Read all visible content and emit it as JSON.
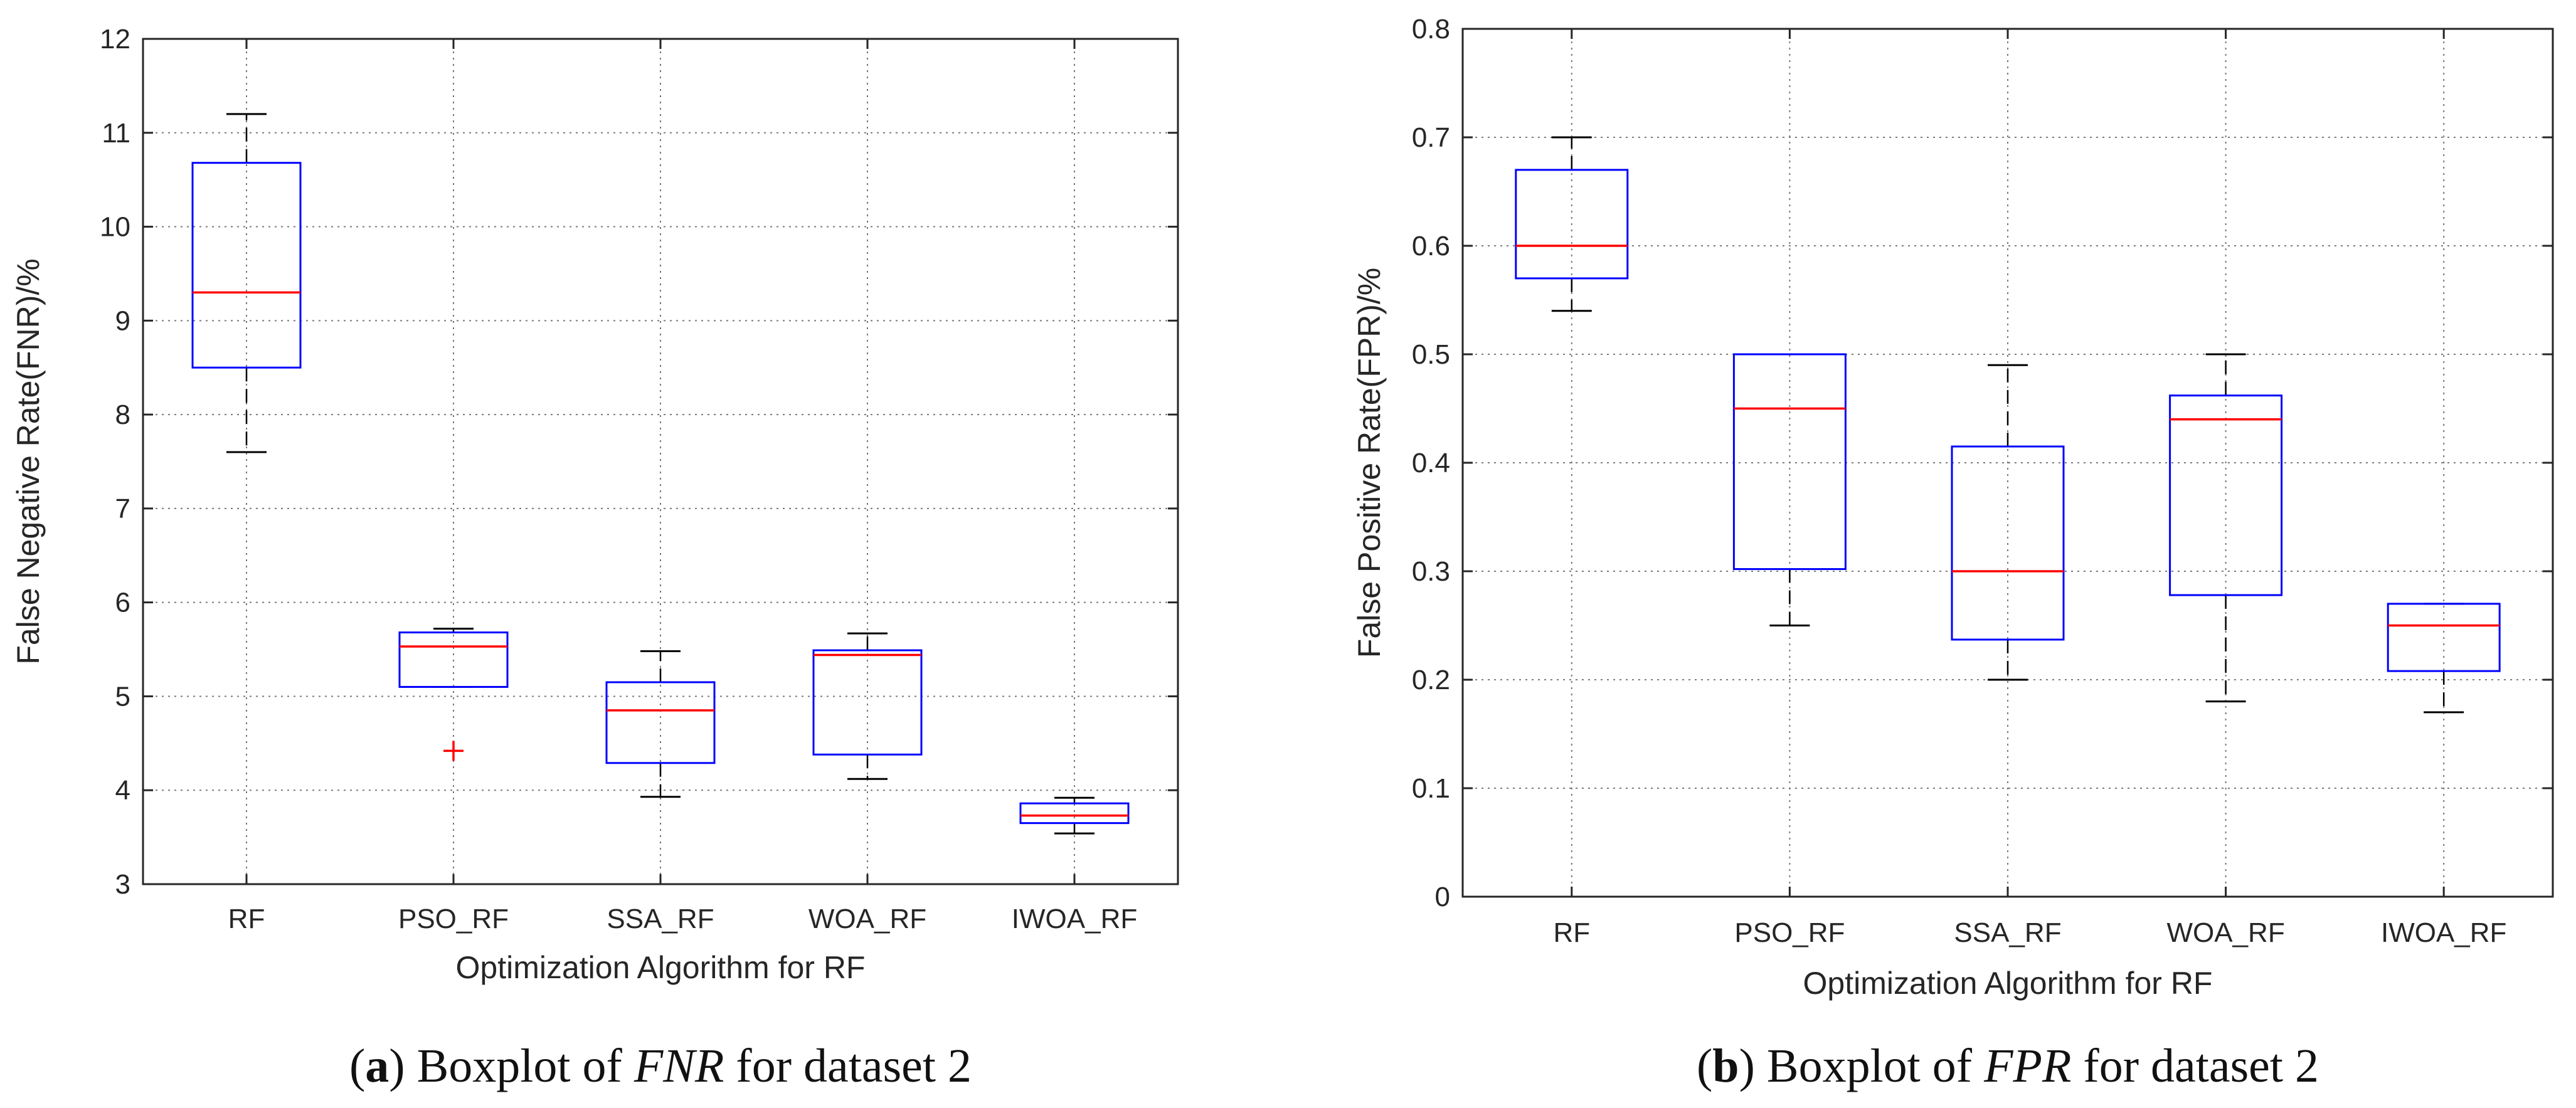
{
  "chart_data": [
    {
      "type": "boxplot",
      "caption": {
        "tag": "a",
        "prefix": "Boxplot of ",
        "metric": "FNR",
        "suffix": " for dataset 2"
      },
      "xlabel": "Optimization Algorithm for RF",
      "ylabel": "False Negative Rate(FNR)/%",
      "ylim": [
        3,
        12
      ],
      "yticks": [
        "3",
        "4",
        "5",
        "6",
        "7",
        "8",
        "9",
        "10",
        "11",
        "12"
      ],
      "grid": true,
      "colors": {
        "box": "#0000ff",
        "median": "#ff0000",
        "whisker": "#000000",
        "outlier": "#ff0000"
      },
      "categories": [
        "RF",
        "PSO_RF",
        "SSA_RF",
        "WOA_RF",
        "IWOA_RF"
      ],
      "boxes": [
        {
          "min": 7.6,
          "q1": 8.5,
          "median": 9.3,
          "q3": 10.68,
          "max": 11.2,
          "outliers": []
        },
        {
          "min": 5.1,
          "q1": 5.1,
          "median": 5.53,
          "q3": 5.68,
          "max": 5.72,
          "outliers": [
            4.42
          ]
        },
        {
          "min": 3.93,
          "q1": 4.29,
          "median": 4.85,
          "q3": 5.15,
          "max": 5.48,
          "outliers": []
        },
        {
          "min": 4.12,
          "q1": 4.38,
          "median": 5.44,
          "q3": 5.49,
          "max": 5.67,
          "outliers": []
        },
        {
          "min": 3.54,
          "q1": 3.65,
          "median": 3.73,
          "q3": 3.86,
          "max": 3.92,
          "outliers": []
        }
      ]
    },
    {
      "type": "boxplot",
      "caption": {
        "tag": "b",
        "prefix": "Boxplot of ",
        "metric": "FPR",
        "suffix": " for dataset 2"
      },
      "xlabel": "Optimization Algorithm for RF",
      "ylabel": "False Positive Rate(FPR)/%",
      "ylim": [
        0,
        0.8
      ],
      "yticks": [
        "0",
        "0.1",
        "0.2",
        "0.3",
        "0.4",
        "0.5",
        "0.6",
        "0.7",
        "0.8"
      ],
      "grid": true,
      "colors": {
        "box": "#0000ff",
        "median": "#ff0000",
        "whisker": "#000000",
        "outlier": "#ff0000"
      },
      "categories": [
        "RF",
        "PSO_RF",
        "SSA_RF",
        "WOA_RF",
        "IWOA_RF"
      ],
      "boxes": [
        {
          "min": 0.54,
          "q1": 0.57,
          "median": 0.6,
          "q3": 0.67,
          "max": 0.7,
          "outliers": []
        },
        {
          "min": 0.25,
          "q1": 0.302,
          "median": 0.45,
          "q3": 0.5,
          "max": 0.5,
          "outliers": []
        },
        {
          "min": 0.2,
          "q1": 0.237,
          "median": 0.3,
          "q3": 0.415,
          "max": 0.49,
          "outliers": []
        },
        {
          "min": 0.18,
          "q1": 0.278,
          "median": 0.44,
          "q3": 0.462,
          "max": 0.5,
          "outliers": []
        },
        {
          "min": 0.17,
          "q1": 0.208,
          "median": 0.25,
          "q3": 0.27,
          "max": 0.27,
          "outliers": []
        }
      ]
    }
  ]
}
